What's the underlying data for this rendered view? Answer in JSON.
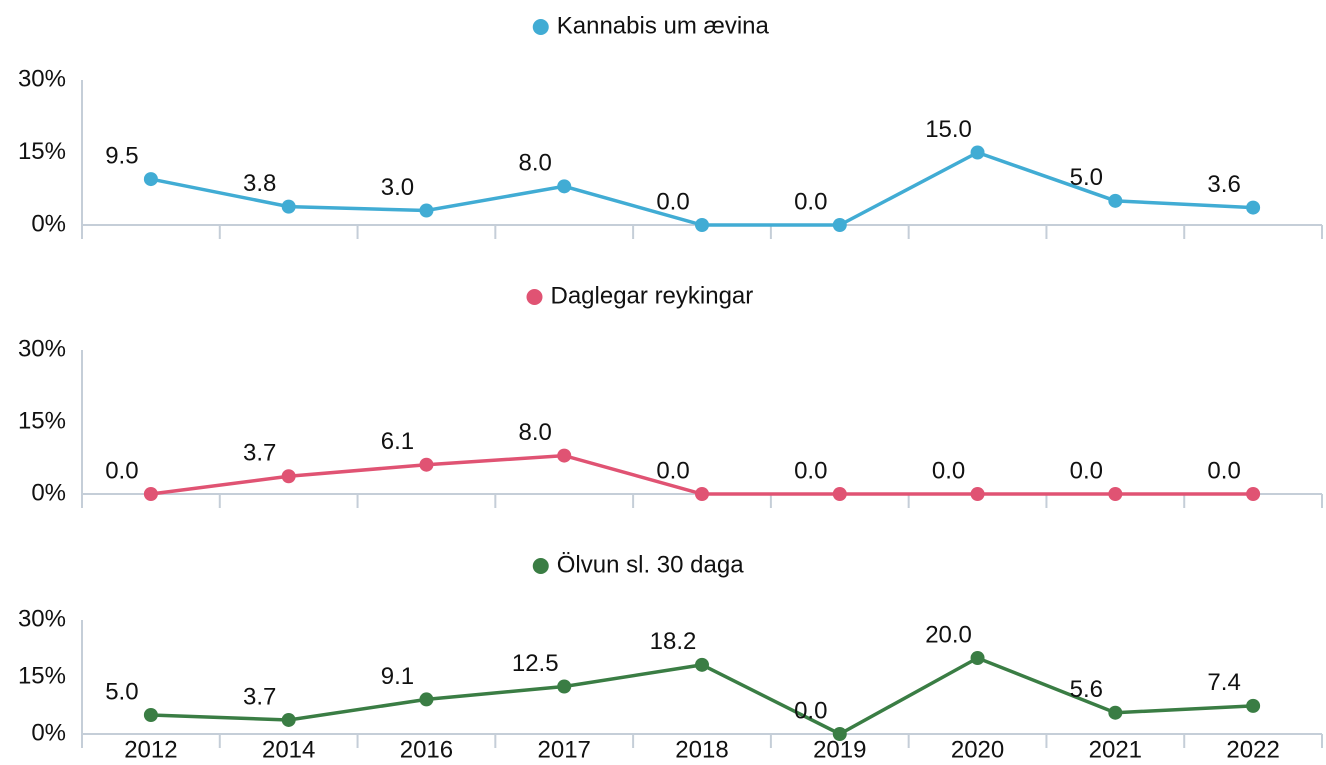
{
  "chart_data": [
    {
      "type": "line",
      "series": [
        {
          "name": "Kannabis um ævina",
          "color": "#41acd4",
          "values": [
            9.5,
            3.8,
            3.0,
            8.0,
            0,
            0,
            15.0,
            5.0,
            3.6
          ],
          "value_labels": [
            "9.5",
            "3.8",
            "3.0",
            "8.0",
            "0.0",
            "0.0",
            "15.0",
            "5.0",
            "3.6"
          ]
        }
      ],
      "ylim": [
        0,
        30
      ],
      "yticks": [
        {
          "value": 0,
          "label": "0%"
        },
        {
          "value": 15,
          "label": "15%"
        },
        {
          "value": 30,
          "label": "30%"
        }
      ]
    },
    {
      "type": "line",
      "series": [
        {
          "name": "Daglegar reykingar",
          "color": "#e05373",
          "values": [
            0,
            3.7,
            6.1,
            8.0,
            0,
            0,
            0,
            0,
            0
          ],
          "value_labels": [
            "0.0",
            "3.7",
            "6.1",
            "8.0",
            "0.0",
            "0.0",
            "0.0",
            "0.0",
            "0.0"
          ]
        }
      ],
      "ylim": [
        0,
        30
      ],
      "yticks": [
        {
          "value": 0,
          "label": "0%"
        },
        {
          "value": 15,
          "label": "15%"
        },
        {
          "value": 30,
          "label": "30%"
        }
      ]
    },
    {
      "type": "line",
      "categories": [
        "2012",
        "2014",
        "2016",
        "2017",
        "2018",
        "2019",
        "2020",
        "2021",
        "2022"
      ],
      "series": [
        {
          "name": "Ölvun sl. 30 daga",
          "color": "#3a7d44",
          "values": [
            5.0,
            3.7,
            9.1,
            12.5,
            18.2,
            0,
            20.0,
            5.6,
            7.4
          ],
          "value_labels": [
            "5.0",
            "3.7",
            "9.1",
            "12.5",
            "18.2",
            "0.0",
            "20.0",
            "5.6",
            "7.4"
          ]
        }
      ],
      "ylim": [
        0,
        30
      ],
      "yticks": [
        {
          "value": 0,
          "label": "0%"
        },
        {
          "value": 15,
          "label": "15%"
        },
        {
          "value": 30,
          "label": "30%"
        }
      ]
    }
  ]
}
